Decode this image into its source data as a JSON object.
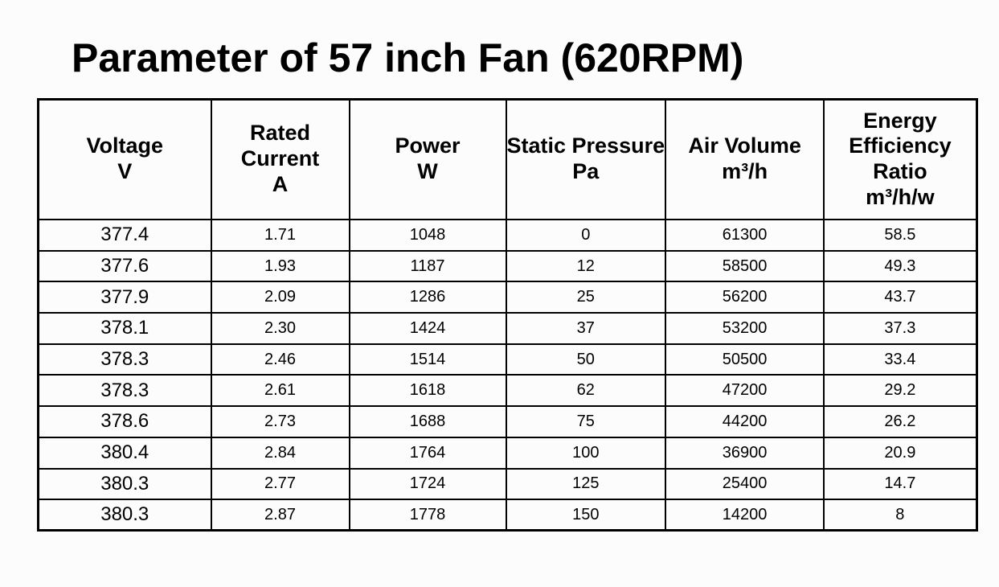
{
  "page": {
    "background_color": "#fcfcfc",
    "text_color": "#000000",
    "border_color": "#000000"
  },
  "title": "Parameter of 57 inch Fan (620RPM)",
  "table": {
    "columns": [
      {
        "key": "voltage",
        "label_lines": [
          "Voltage"
        ],
        "unit": "V"
      },
      {
        "key": "rated-current",
        "label_lines": [
          "Rated",
          "Current"
        ],
        "unit": "A"
      },
      {
        "key": "power",
        "label_lines": [
          "Power"
        ],
        "unit": "W"
      },
      {
        "key": "static-pressure",
        "label_lines": [
          "Static Pressure"
        ],
        "unit": "Pa"
      },
      {
        "key": "air-volume",
        "label_lines": [
          "Air Volume"
        ],
        "unit": "m³/h"
      },
      {
        "key": "energy-efficiency-ratio",
        "label_lines": [
          "Energy",
          "Efficiency",
          "Ratio"
        ],
        "unit": "m³/h/w"
      }
    ],
    "rows": [
      [
        "377.4",
        "1.71",
        "1048",
        "0",
        "61300",
        "58.5"
      ],
      [
        "377.6",
        "1.93",
        "1187",
        "12",
        "58500",
        "49.3"
      ],
      [
        "377.9",
        "2.09",
        "1286",
        "25",
        "56200",
        "43.7"
      ],
      [
        "378.1",
        "2.30",
        "1424",
        "37",
        "53200",
        "37.3"
      ],
      [
        "378.3",
        "2.46",
        "1514",
        "50",
        "50500",
        "33.4"
      ],
      [
        "378.3",
        "2.61",
        "1618",
        "62",
        "47200",
        "29.2"
      ],
      [
        "378.6",
        "2.73",
        "1688",
        "75",
        "44200",
        "26.2"
      ],
      [
        "380.4",
        "2.84",
        "1764",
        "100",
        "36900",
        "20.9"
      ],
      [
        "380.3",
        "2.77",
        "1724",
        "125",
        "25400",
        "14.7"
      ],
      [
        "380.3",
        "2.87",
        "1778",
        "150",
        "14200",
        "8"
      ]
    ]
  }
}
